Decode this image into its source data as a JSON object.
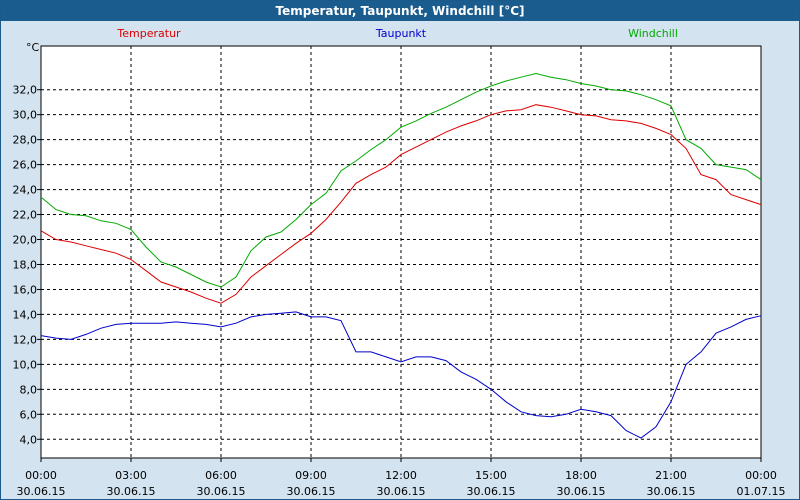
{
  "chart_data": {
    "type": "line",
    "title": "Temperatur, Taupunkt, Windchill [°C]",
    "ylabel": "°C",
    "ylim": [
      2.5,
      35.5
    ],
    "xlim": [
      0,
      24
    ],
    "y_ticks": [
      4,
      6,
      8,
      10,
      12,
      14,
      16,
      18,
      20,
      22,
      24,
      26,
      28,
      30,
      32
    ],
    "y_tick_labels": [
      "4,0",
      "6,0",
      "8,0",
      "10,0",
      "12,0",
      "14,0",
      "16,0",
      "18,0",
      "20,0",
      "22,0",
      "24,0",
      "26,0",
      "28,0",
      "30,0",
      "32,0"
    ],
    "x_ticks": [
      {
        "hour": 0,
        "time": "00:00",
        "date": "30.06.15"
      },
      {
        "hour": 3,
        "time": "03:00",
        "date": "30.06.15"
      },
      {
        "hour": 6,
        "time": "06:00",
        "date": "30.06.15"
      },
      {
        "hour": 9,
        "time": "09:00",
        "date": "30.06.15"
      },
      {
        "hour": 12,
        "time": "12:00",
        "date": "30.06.15"
      },
      {
        "hour": 15,
        "time": "15:00",
        "date": "30.06.15"
      },
      {
        "hour": 18,
        "time": "18:00",
        "date": "30.06.15"
      },
      {
        "hour": 21,
        "time": "21:00",
        "date": "30.06.15"
      },
      {
        "hour": 24,
        "time": "00:00",
        "date": "01.07.15"
      }
    ],
    "grid": true,
    "series": [
      {
        "name": "Temperatur",
        "color": "#dd0000",
        "x": [
          0,
          0.5,
          1,
          1.5,
          2,
          2.5,
          3,
          3.5,
          4,
          4.5,
          5,
          5.5,
          6,
          6.5,
          7,
          7.5,
          8,
          8.5,
          9,
          9.5,
          10,
          10.5,
          11,
          11.5,
          12,
          12.5,
          13,
          13.5,
          14,
          14.5,
          15,
          15.5,
          16,
          16.5,
          17,
          17.5,
          18,
          18.5,
          19,
          19.5,
          20,
          20.5,
          21,
          21.5,
          22,
          22.5,
          23,
          23.5,
          24
        ],
        "values": [
          20.7,
          20.0,
          19.8,
          19.5,
          19.2,
          18.9,
          18.4,
          17.5,
          16.6,
          16.2,
          15.8,
          15.3,
          14.9,
          15.6,
          17.0,
          17.9,
          18.8,
          19.7,
          20.5,
          21.6,
          23.0,
          24.5,
          25.2,
          25.8,
          26.8,
          27.4,
          28.0,
          28.6,
          29.1,
          29.5,
          30.0,
          30.3,
          30.4,
          30.8,
          30.6,
          30.3,
          30.0,
          29.9,
          29.6,
          29.5,
          29.3,
          28.9,
          28.4,
          27.3,
          25.2,
          24.8,
          23.6,
          23.2,
          22.8
        ]
      },
      {
        "name": "Taupunkt",
        "color": "#0000cc",
        "x": [
          0,
          0.5,
          1,
          1.5,
          2,
          2.5,
          3,
          3.5,
          4,
          4.5,
          5,
          5.5,
          6,
          6.5,
          7,
          7.5,
          8,
          8.5,
          9,
          9.5,
          10,
          10.5,
          11,
          11.5,
          12,
          12.5,
          13,
          13.5,
          14,
          14.5,
          15,
          15.5,
          16,
          16.5,
          17,
          17.5,
          18,
          18.5,
          19,
          19.5,
          20,
          20.5,
          21,
          21.5,
          22,
          22.5,
          23,
          23.5,
          24
        ],
        "values": [
          12.3,
          12.1,
          12.0,
          12.4,
          12.9,
          13.2,
          13.3,
          13.3,
          13.3,
          13.4,
          13.3,
          13.2,
          13.0,
          13.3,
          13.8,
          14.0,
          14.1,
          14.2,
          13.8,
          13.8,
          13.5,
          11.0,
          11.0,
          10.6,
          10.2,
          10.6,
          10.6,
          10.3,
          9.4,
          8.8,
          8.0,
          7.0,
          6.2,
          5.9,
          5.8,
          6.0,
          6.4,
          6.2,
          5.9,
          4.7,
          4.1,
          5.0,
          7.0,
          10.0,
          11.0,
          12.5,
          13.0,
          13.6,
          13.9
        ]
      },
      {
        "name": "Windchill",
        "color": "#00aa00",
        "x": [
          0,
          0.5,
          1,
          1.5,
          2,
          2.5,
          3,
          3.5,
          4,
          4.5,
          5,
          5.5,
          6,
          6.5,
          7,
          7.5,
          8,
          8.5,
          9,
          9.5,
          10,
          10.5,
          11,
          11.5,
          12,
          12.5,
          13,
          13.5,
          14,
          14.5,
          15,
          15.5,
          16,
          16.5,
          17,
          17.5,
          18,
          18.5,
          19,
          19.5,
          20,
          20.5,
          21,
          21.5,
          22,
          22.5,
          23,
          23.5,
          24
        ],
        "values": [
          23.4,
          22.4,
          22.0,
          21.9,
          21.5,
          21.3,
          20.8,
          19.4,
          18.2,
          17.8,
          17.2,
          16.6,
          16.2,
          17.0,
          19.1,
          20.2,
          20.6,
          21.6,
          22.8,
          23.7,
          25.5,
          26.3,
          27.2,
          28.0,
          29.0,
          29.5,
          30.1,
          30.6,
          31.2,
          31.8,
          32.3,
          32.7,
          33.0,
          33.3,
          33.0,
          32.8,
          32.5,
          32.3,
          32.0,
          31.9,
          31.6,
          31.2,
          30.7,
          28.0,
          27.3,
          26.0,
          25.8,
          25.6,
          24.8
        ]
      }
    ]
  }
}
